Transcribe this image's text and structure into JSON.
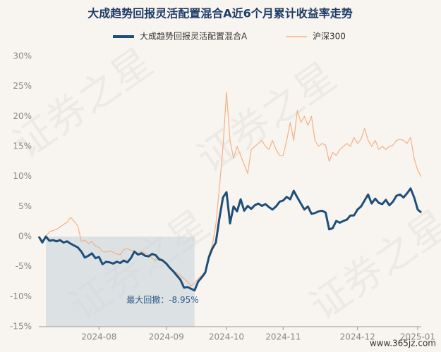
{
  "chart_data": {
    "type": "line",
    "title": "大成趋势回报灵活配置混合A近6个月累计收益率走势",
    "annotation": "最大回撤：-8.95%",
    "watermark": "证券之星",
    "footer": "www.365jz.com",
    "categories": [
      null,
      null,
      null,
      null,
      null,
      null,
      null,
      null,
      null,
      null,
      null,
      null,
      null,
      null,
      null,
      null,
      null,
      "2024-08",
      null,
      null,
      null,
      null,
      null,
      null,
      null,
      null,
      null,
      null,
      null,
      null,
      null,
      null,
      null,
      null,
      null,
      null,
      "2024-09",
      null,
      null,
      null,
      null,
      null,
      null,
      null,
      null,
      null,
      null,
      null,
      null,
      null,
      null,
      null,
      null,
      "2024-10",
      null,
      null,
      null,
      null,
      null,
      null,
      null,
      null,
      null,
      null,
      null,
      null,
      null,
      null,
      null,
      "2024-11",
      null,
      null,
      null,
      null,
      null,
      null,
      null,
      null,
      null,
      null,
      null,
      null,
      null,
      null,
      null,
      null,
      null,
      null,
      null,
      null,
      "2024-12",
      null,
      null,
      null,
      null,
      null,
      null,
      null,
      null,
      null,
      null,
      null,
      null,
      null,
      null,
      null,
      null,
      "2025-01",
      null
    ],
    "series": [
      {
        "name": "大成趋势回报灵活配置混合A",
        "color": "#1f4e79",
        "values": [
          0,
          -1,
          0,
          -0.7,
          -0.6,
          -0.8,
          -0.6,
          -1,
          -0.8,
          -1.2,
          -1.5,
          -1.8,
          -2.5,
          -3.5,
          -3.2,
          -2.8,
          -3.6,
          -3.4,
          -4.6,
          -4.2,
          -4.3,
          -4.5,
          -4.2,
          -4.4,
          -4,
          -4.3,
          -3.6,
          -2.5,
          -3,
          -2.8,
          -3.2,
          -3.3,
          -2.9,
          -3.1,
          -3.8,
          -4,
          -4.5,
          -5.2,
          -5.8,
          -6.5,
          -7.2,
          -8.5,
          -8.4,
          -8.7,
          -8.95,
          -7.5,
          -6.8,
          -6,
          -3.5,
          -2,
          -1,
          3,
          6.5,
          7.4,
          2.2,
          5,
          4.2,
          6.2,
          4.3,
          5.1,
          4.6,
          5.2,
          5.5,
          5.1,
          5.4,
          4.9,
          4.5,
          5,
          5.8,
          6,
          6.6,
          6.2,
          7.6,
          6.5,
          5.5,
          4.5,
          5,
          3.8,
          3.9,
          4.2,
          4.3,
          4,
          1.2,
          1.4,
          2.6,
          2.3,
          2.6,
          2.8,
          3.5,
          3.5,
          4.5,
          5,
          6,
          7,
          5.5,
          6.3,
          5.6,
          5.4,
          6.1,
          5.2,
          5.8,
          6.8,
          7,
          6.5,
          7.2,
          8,
          6.5,
          4.5,
          4
        ]
      },
      {
        "name": "沪深300",
        "color": "#f4b183",
        "values": [
          0,
          -0.6,
          0,
          0.8,
          1,
          1.2,
          1.6,
          2,
          2.4,
          3.2,
          2.5,
          1.8,
          -0.8,
          -0.6,
          -1.2,
          -0.8,
          -1.6,
          -1.8,
          -2.5,
          -2.6,
          -2.4,
          -2.6,
          -2.9,
          -3,
          -2.2,
          -2,
          -2.3,
          -2.4,
          -3,
          -2.5,
          -2.8,
          -3,
          -3.6,
          -4,
          -3.5,
          -3.8,
          -4.5,
          -5.2,
          -5.8,
          -6,
          -6.5,
          -7,
          -7.5,
          -8.2,
          -7.8,
          -7,
          -6.5,
          -5.8,
          -3,
          -1.5,
          2,
          8,
          15,
          24,
          16,
          13,
          15,
          13.5,
          12,
          10.5,
          14.5,
          15,
          15.5,
          16,
          15,
          14.5,
          16,
          14.5,
          13.5,
          13.5,
          16,
          19,
          16,
          21,
          19,
          20,
          18.5,
          20,
          16,
          15,
          15.5,
          15.2,
          12.5,
          14,
          13.5,
          14.5,
          15,
          15.5,
          15,
          16.5,
          15.5,
          16.2,
          18,
          16,
          15,
          16,
          14.5,
          15,
          14.5,
          15,
          15.2,
          16,
          16.2,
          16,
          15.5,
          16.5,
          13,
          11,
          10
        ]
      }
    ],
    "ylim": [
      -15,
      30
    ],
    "yticks": [
      {
        "value": 30,
        "label": "30%"
      },
      {
        "value": 25,
        "label": "25%"
      },
      {
        "value": 20,
        "label": "20%"
      },
      {
        "value": 15,
        "label": "15%"
      },
      {
        "value": 10,
        "label": "10%"
      },
      {
        "value": 5,
        "label": "5%"
      },
      {
        "value": 0,
        "label": "0%"
      },
      {
        "value": -5,
        "label": "-5%"
      },
      {
        "value": -10,
        "label": "-10%"
      },
      {
        "value": -15,
        "label": "-15%"
      }
    ],
    "grid": false,
    "legend": "top"
  }
}
